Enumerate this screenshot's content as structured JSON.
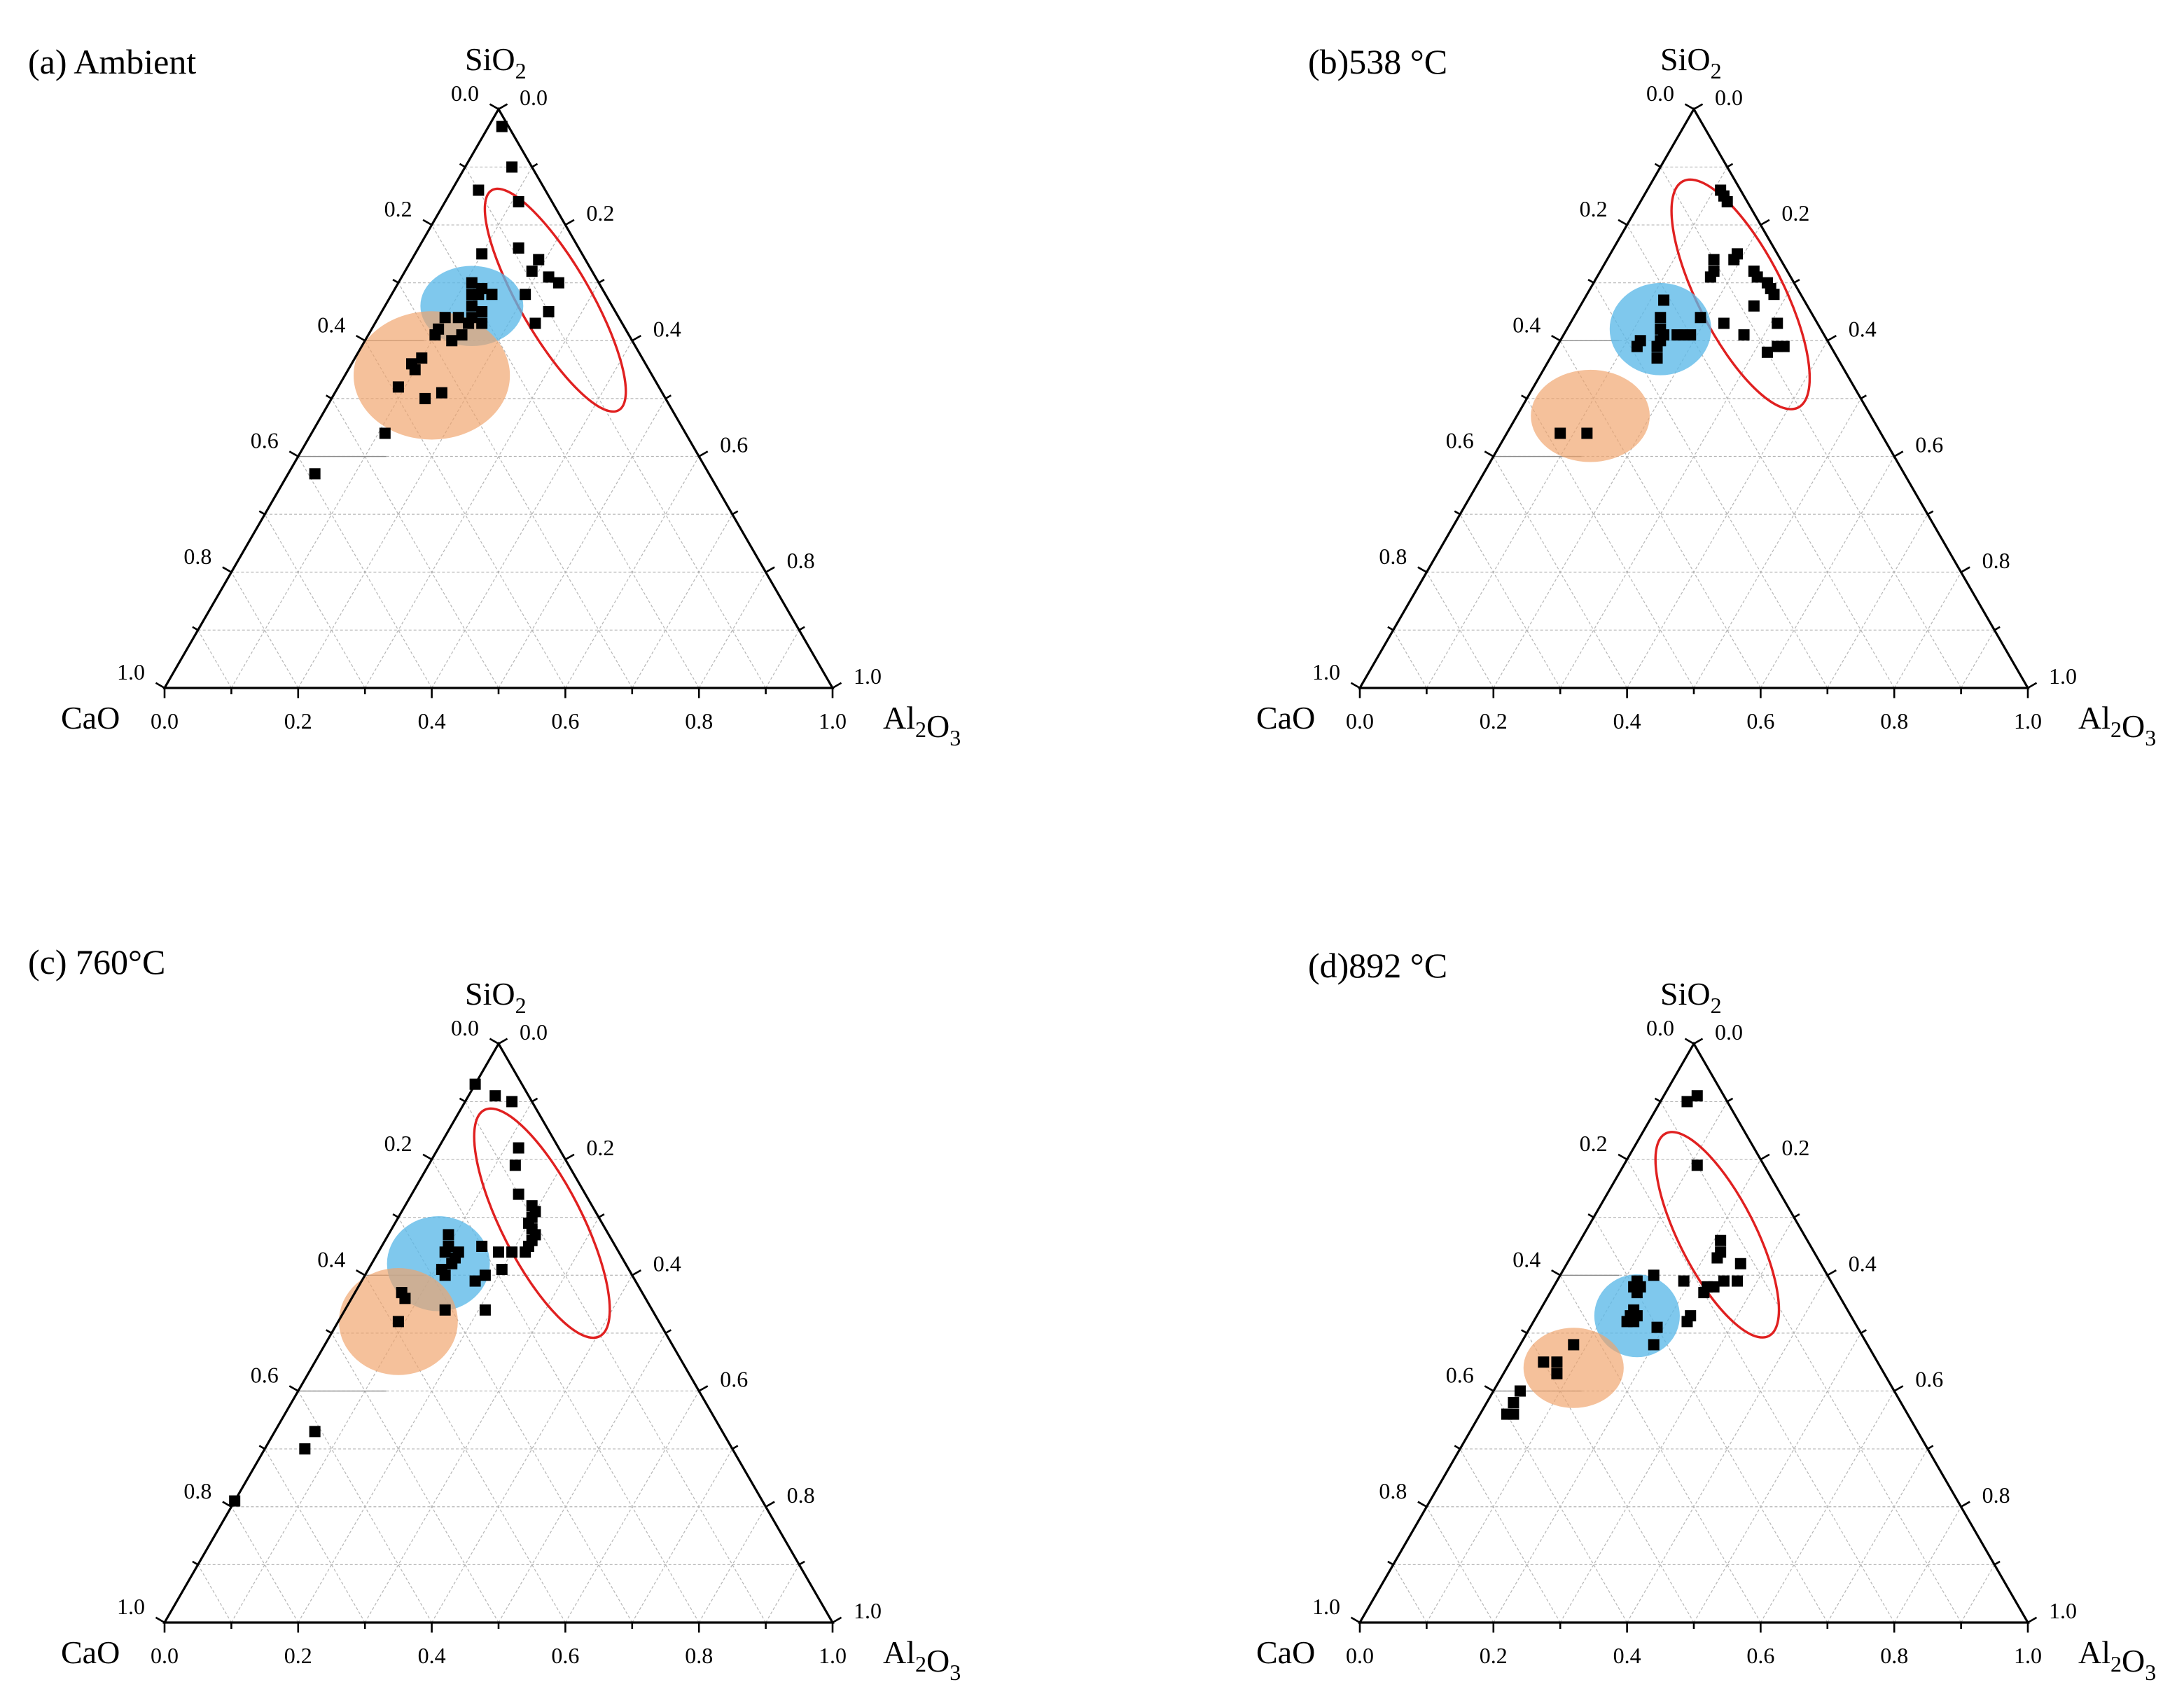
{
  "figure": {
    "vertex_labels": {
      "top": "SiO2",
      "left": "CaO",
      "right": "Al2O3"
    },
    "tick_labels": [
      "0.0",
      "0.2",
      "0.4",
      "0.6",
      "0.8",
      "1.0"
    ],
    "colors": {
      "ellipse_red": "#e02020",
      "cluster_blue": "#5bb8e8",
      "cluster_orange": "#f0a46c",
      "points": "#000000"
    }
  },
  "chart_data": [
    {
      "type": "scatter",
      "subtype": "ternary",
      "title": "(a) Ambient",
      "components": [
        "CaO",
        "Al2O3",
        "SiO2"
      ],
      "points": [
        [
          0.01,
          0.02,
          0.97
        ],
        [
          0.03,
          0.07,
          0.9
        ],
        [
          0.1,
          0.04,
          0.86
        ],
        [
          0.05,
          0.11,
          0.84
        ],
        [
          0.09,
          0.15,
          0.76
        ],
        [
          0.15,
          0.1,
          0.75
        ],
        [
          0.07,
          0.19,
          0.74
        ],
        [
          0.09,
          0.19,
          0.72
        ],
        [
          0.07,
          0.22,
          0.71
        ],
        [
          0.06,
          0.24,
          0.7
        ],
        [
          0.12,
          0.2,
          0.68
        ],
        [
          0.1,
          0.25,
          0.65
        ],
        [
          0.13,
          0.24,
          0.63
        ],
        [
          0.19,
          0.11,
          0.7
        ],
        [
          0.18,
          0.13,
          0.69
        ],
        [
          0.17,
          0.15,
          0.68
        ],
        [
          0.2,
          0.12,
          0.68
        ],
        [
          0.19,
          0.13,
          0.68
        ],
        [
          0.21,
          0.13,
          0.66
        ],
        [
          0.2,
          0.15,
          0.65
        ],
        [
          0.22,
          0.14,
          0.64
        ],
        [
          0.26,
          0.1,
          0.64
        ],
        [
          0.24,
          0.12,
          0.64
        ],
        [
          0.23,
          0.14,
          0.63
        ],
        [
          0.21,
          0.16,
          0.63
        ],
        [
          0.28,
          0.1,
          0.62
        ],
        [
          0.29,
          0.1,
          0.61
        ],
        [
          0.25,
          0.14,
          0.61
        ],
        [
          0.27,
          0.13,
          0.6
        ],
        [
          0.33,
          0.1,
          0.57
        ],
        [
          0.35,
          0.09,
          0.56
        ],
        [
          0.35,
          0.1,
          0.55
        ],
        [
          0.39,
          0.09,
          0.52
        ],
        [
          0.36,
          0.14,
          0.5
        ],
        [
          0.33,
          0.16,
          0.51
        ],
        [
          0.45,
          0.11,
          0.44
        ],
        [
          0.59,
          0.04,
          0.37
        ]
      ],
      "regions": [
        {
          "color": "red",
          "kind": "outline",
          "center": [
            0.08,
            0.25,
            0.67
          ],
          "rx": 0.19,
          "ry": 0.053,
          "angle": 60
        },
        {
          "color": "blue",
          "kind": "fill",
          "center": [
            0.21,
            0.13,
            0.66
          ],
          "rx": 0.077,
          "ry": 0.06,
          "angle": 0
        },
        {
          "color": "orange",
          "kind": "fill",
          "center": [
            0.33,
            0.13,
            0.54
          ],
          "rx": 0.117,
          "ry": 0.096,
          "angle": 0
        }
      ]
    },
    {
      "type": "scatter",
      "subtype": "ternary",
      "title": "(b)538 °C",
      "components": [
        "CaO",
        "Al2O3",
        "SiO2"
      ],
      "points": [
        [
          0.03,
          0.11,
          0.86
        ],
        [
          0.03,
          0.12,
          0.85
        ],
        [
          0.03,
          0.13,
          0.84
        ],
        [
          0.06,
          0.19,
          0.75
        ],
        [
          0.07,
          0.19,
          0.74
        ],
        [
          0.05,
          0.23,
          0.72
        ],
        [
          0.05,
          0.24,
          0.71
        ],
        [
          0.04,
          0.26,
          0.7
        ],
        [
          0.04,
          0.27,
          0.69
        ],
        [
          0.04,
          0.28,
          0.68
        ],
        [
          0.1,
          0.16,
          0.74
        ],
        [
          0.11,
          0.17,
          0.72
        ],
        [
          0.12,
          0.17,
          0.71
        ],
        [
          0.08,
          0.26,
          0.66
        ],
        [
          0.06,
          0.31,
          0.63
        ],
        [
          0.1,
          0.32,
          0.58
        ],
        [
          0.07,
          0.34,
          0.59
        ],
        [
          0.08,
          0.33,
          0.59
        ],
        [
          0.12,
          0.27,
          0.61
        ],
        [
          0.14,
          0.23,
          0.63
        ],
        [
          0.17,
          0.19,
          0.64
        ],
        [
          0.21,
          0.12,
          0.67
        ],
        [
          0.21,
          0.18,
          0.61
        ],
        [
          0.22,
          0.17,
          0.61
        ],
        [
          0.2,
          0.19,
          0.61
        ],
        [
          0.23,
          0.13,
          0.64
        ],
        [
          0.24,
          0.14,
          0.62
        ],
        [
          0.24,
          0.15,
          0.61
        ],
        [
          0.25,
          0.15,
          0.6
        ],
        [
          0.26,
          0.15,
          0.59
        ],
        [
          0.28,
          0.12,
          0.6
        ],
        [
          0.29,
          0.12,
          0.59
        ],
        [
          0.27,
          0.16,
          0.57
        ],
        [
          0.44,
          0.12,
          0.44
        ],
        [
          0.48,
          0.08,
          0.44
        ]
      ],
      "regions": [
        {
          "color": "red",
          "kind": "outline",
          "center": [
            0.09,
            0.23,
            0.68
          ],
          "rx": 0.19,
          "ry": 0.064,
          "angle": 63
        },
        {
          "color": "blue",
          "kind": "fill",
          "center": [
            0.24,
            0.14,
            0.62
          ],
          "rx": 0.076,
          "ry": 0.069,
          "angle": 0
        },
        {
          "color": "orange",
          "kind": "fill",
          "center": [
            0.42,
            0.11,
            0.47
          ],
          "rx": 0.089,
          "ry": 0.069,
          "angle": 0
        }
      ]
    },
    {
      "type": "scatter",
      "subtype": "ternary",
      "title": "(c) 760°C",
      "components": [
        "CaO",
        "Al2O3",
        "SiO2"
      ],
      "points": [
        [
          0.07,
          0.0,
          0.93
        ],
        [
          0.05,
          0.04,
          0.91
        ],
        [
          0.03,
          0.07,
          0.9
        ],
        [
          0.06,
          0.12,
          0.82
        ],
        [
          0.08,
          0.13,
          0.79
        ],
        [
          0.1,
          0.16,
          0.74
        ],
        [
          0.09,
          0.19,
          0.72
        ],
        [
          0.09,
          0.2,
          0.71
        ],
        [
          0.1,
          0.2,
          0.7
        ],
        [
          0.11,
          0.2,
          0.69
        ],
        [
          0.11,
          0.21,
          0.68
        ],
        [
          0.11,
          0.22,
          0.67
        ],
        [
          0.12,
          0.22,
          0.66
        ],
        [
          0.13,
          0.22,
          0.65
        ],
        [
          0.14,
          0.22,
          0.64
        ],
        [
          0.16,
          0.2,
          0.64
        ],
        [
          0.18,
          0.18,
          0.64
        ],
        [
          0.2,
          0.15,
          0.65
        ],
        [
          0.24,
          0.09,
          0.67
        ],
        [
          0.25,
          0.1,
          0.65
        ],
        [
          0.24,
          0.12,
          0.64
        ],
        [
          0.26,
          0.1,
          0.64
        ],
        [
          0.25,
          0.12,
          0.63
        ],
        [
          0.26,
          0.12,
          0.62
        ],
        [
          0.28,
          0.11,
          0.61
        ],
        [
          0.28,
          0.12,
          0.6
        ],
        [
          0.19,
          0.2,
          0.61
        ],
        [
          0.22,
          0.18,
          0.6
        ],
        [
          0.24,
          0.17,
          0.59
        ],
        [
          0.31,
          0.15,
          0.54
        ],
        [
          0.25,
          0.21,
          0.54
        ],
        [
          0.36,
          0.07,
          0.57
        ],
        [
          0.36,
          0.08,
          0.56
        ],
        [
          0.39,
          0.09,
          0.52
        ],
        [
          0.61,
          0.06,
          0.33
        ],
        [
          0.64,
          0.06,
          0.3
        ],
        [
          0.79,
          0.0,
          0.21
        ]
      ],
      "regions": [
        {
          "color": "red",
          "kind": "outline",
          "center": [
            0.09,
            0.22,
            0.69
          ],
          "rx": 0.19,
          "ry": 0.06,
          "angle": 63
        },
        {
          "color": "blue",
          "kind": "fill",
          "center": [
            0.28,
            0.1,
            0.62
          ],
          "rx": 0.077,
          "ry": 0.071,
          "angle": 0
        },
        {
          "color": "orange",
          "kind": "fill",
          "center": [
            0.39,
            0.09,
            0.52
          ],
          "rx": 0.089,
          "ry": 0.08,
          "angle": 0
        }
      ]
    },
    {
      "type": "scatter",
      "subtype": "ternary",
      "title": "(d)892 °C",
      "components": [
        "CaO",
        "Al2O3",
        "SiO2"
      ],
      "points": [
        [
          0.04,
          0.05,
          0.91
        ],
        [
          0.06,
          0.04,
          0.9
        ],
        [
          0.1,
          0.11,
          0.79
        ],
        [
          0.13,
          0.21,
          0.66
        ],
        [
          0.14,
          0.22,
          0.64
        ],
        [
          0.15,
          0.22,
          0.63
        ],
        [
          0.12,
          0.26,
          0.62
        ],
        [
          0.14,
          0.27,
          0.59
        ],
        [
          0.16,
          0.25,
          0.59
        ],
        [
          0.18,
          0.24,
          0.58
        ],
        [
          0.19,
          0.23,
          0.58
        ],
        [
          0.2,
          0.23,
          0.57
        ],
        [
          0.22,
          0.19,
          0.59
        ],
        [
          0.24,
          0.23,
          0.53
        ],
        [
          0.25,
          0.23,
          0.52
        ],
        [
          0.26,
          0.14,
          0.6
        ],
        [
          0.3,
          0.12,
          0.58
        ],
        [
          0.29,
          0.12,
          0.59
        ],
        [
          0.29,
          0.13,
          0.58
        ],
        [
          0.3,
          0.13,
          0.57
        ],
        [
          0.32,
          0.14,
          0.54
        ],
        [
          0.33,
          0.14,
          0.53
        ],
        [
          0.32,
          0.15,
          0.53
        ],
        [
          0.33,
          0.15,
          0.52
        ],
        [
          0.34,
          0.14,
          0.52
        ],
        [
          0.3,
          0.19,
          0.51
        ],
        [
          0.32,
          0.2,
          0.48
        ],
        [
          0.44,
          0.08,
          0.48
        ],
        [
          0.48,
          0.07,
          0.45
        ],
        [
          0.5,
          0.05,
          0.45
        ],
        [
          0.49,
          0.08,
          0.43
        ],
        [
          0.56,
          0.04,
          0.4
        ],
        [
          0.58,
          0.04,
          0.38
        ],
        [
          0.6,
          0.04,
          0.36
        ],
        [
          0.59,
          0.05,
          0.36
        ]
      ],
      "regions": [
        {
          "color": "red",
          "kind": "outline",
          "center": [
            0.13,
            0.2,
            0.67
          ],
          "rx": 0.17,
          "ry": 0.057,
          "angle": 63
        },
        {
          "color": "blue",
          "kind": "fill",
          "center": [
            0.32,
            0.15,
            0.53
          ],
          "rx": 0.064,
          "ry": 0.062,
          "angle": 0
        },
        {
          "color": "orange",
          "kind": "fill",
          "center": [
            0.46,
            0.1,
            0.44
          ],
          "rx": 0.075,
          "ry": 0.06,
          "angle": 0
        }
      ]
    }
  ]
}
